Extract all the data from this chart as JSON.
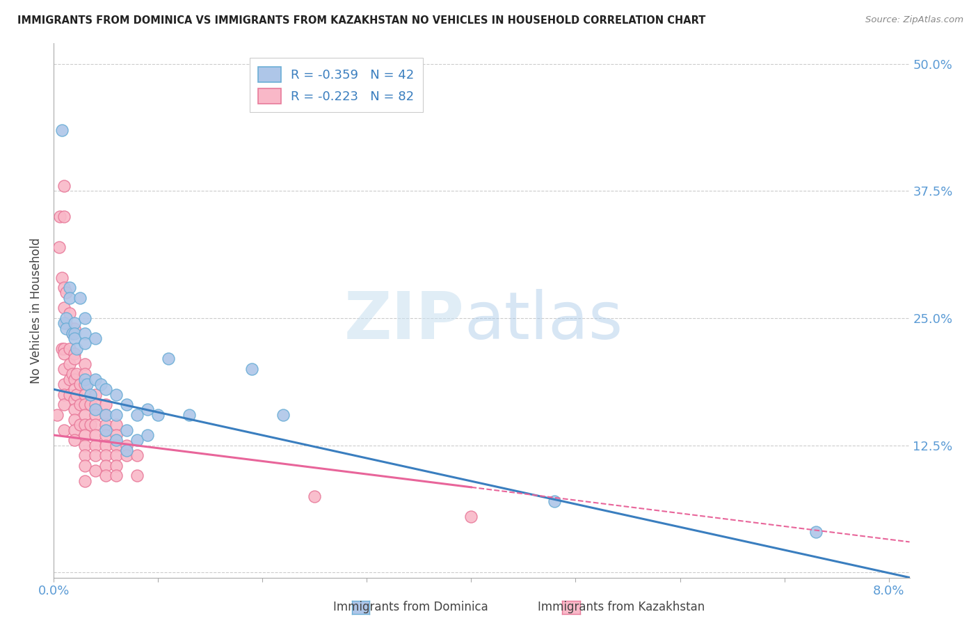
{
  "title": "IMMIGRANTS FROM DOMINICA VS IMMIGRANTS FROM KAZAKHSTAN NO VEHICLES IN HOUSEHOLD CORRELATION CHART",
  "source": "Source: ZipAtlas.com",
  "ylabel": "No Vehicles in Household",
  "yticks": [
    0.0,
    0.125,
    0.25,
    0.375,
    0.5
  ],
  "ytick_labels": [
    "",
    "12.5%",
    "25.0%",
    "37.5%",
    "50.0%"
  ],
  "legend_r1": "R = -0.359   N = 42",
  "legend_r2": "R = -0.223   N = 82",
  "color_dominica": "#aec6e8",
  "color_dominica_edge": "#6baed6",
  "color_kazakhstan": "#f9b8c8",
  "color_kazakhstan_edge": "#e87a9a",
  "color_dominica_line": "#3a7ebf",
  "color_kazakhstan_line": "#e8659a",
  "watermark_zip": "ZIP",
  "watermark_atlas": "atlas",
  "dominica_x": [
    0.0008,
    0.001,
    0.0012,
    0.0012,
    0.0015,
    0.0015,
    0.0018,
    0.002,
    0.002,
    0.002,
    0.0022,
    0.0025,
    0.003,
    0.003,
    0.003,
    0.003,
    0.0032,
    0.0035,
    0.004,
    0.004,
    0.004,
    0.0045,
    0.005,
    0.005,
    0.005,
    0.006,
    0.006,
    0.006,
    0.007,
    0.007,
    0.007,
    0.008,
    0.008,
    0.009,
    0.009,
    0.01,
    0.011,
    0.013,
    0.019,
    0.022,
    0.048,
    0.073
  ],
  "dominica_y": [
    0.435,
    0.245,
    0.25,
    0.24,
    0.28,
    0.27,
    0.235,
    0.245,
    0.235,
    0.23,
    0.22,
    0.27,
    0.25,
    0.235,
    0.225,
    0.19,
    0.185,
    0.175,
    0.23,
    0.19,
    0.16,
    0.185,
    0.18,
    0.155,
    0.14,
    0.175,
    0.155,
    0.13,
    0.165,
    0.14,
    0.12,
    0.155,
    0.13,
    0.16,
    0.135,
    0.155,
    0.21,
    0.155,
    0.2,
    0.155,
    0.07,
    0.04
  ],
  "kazakhstan_x": [
    0.0003,
    0.0005,
    0.0006,
    0.0008,
    0.0008,
    0.001,
    0.001,
    0.001,
    0.001,
    0.001,
    0.001,
    0.001,
    0.001,
    0.001,
    0.001,
    0.001,
    0.0012,
    0.0012,
    0.0015,
    0.0015,
    0.0015,
    0.0015,
    0.0015,
    0.0018,
    0.0018,
    0.002,
    0.002,
    0.002,
    0.002,
    0.002,
    0.002,
    0.002,
    0.002,
    0.002,
    0.002,
    0.0022,
    0.0022,
    0.0025,
    0.0025,
    0.0025,
    0.003,
    0.003,
    0.003,
    0.003,
    0.003,
    0.003,
    0.003,
    0.003,
    0.003,
    0.003,
    0.003,
    0.003,
    0.0035,
    0.0035,
    0.004,
    0.004,
    0.004,
    0.004,
    0.004,
    0.004,
    0.004,
    0.004,
    0.005,
    0.005,
    0.005,
    0.005,
    0.005,
    0.005,
    0.005,
    0.005,
    0.006,
    0.006,
    0.006,
    0.006,
    0.006,
    0.006,
    0.007,
    0.007,
    0.008,
    0.008,
    0.025,
    0.04
  ],
  "kazakhstan_y": [
    0.155,
    0.32,
    0.35,
    0.29,
    0.22,
    0.38,
    0.35,
    0.28,
    0.26,
    0.22,
    0.215,
    0.2,
    0.185,
    0.175,
    0.165,
    0.14,
    0.275,
    0.245,
    0.255,
    0.22,
    0.205,
    0.19,
    0.175,
    0.235,
    0.195,
    0.24,
    0.215,
    0.21,
    0.19,
    0.18,
    0.17,
    0.16,
    0.15,
    0.14,
    0.13,
    0.195,
    0.175,
    0.185,
    0.165,
    0.145,
    0.205,
    0.195,
    0.185,
    0.175,
    0.165,
    0.155,
    0.145,
    0.135,
    0.125,
    0.115,
    0.105,
    0.09,
    0.165,
    0.145,
    0.175,
    0.165,
    0.155,
    0.145,
    0.135,
    0.125,
    0.115,
    0.1,
    0.165,
    0.155,
    0.145,
    0.135,
    0.125,
    0.115,
    0.105,
    0.095,
    0.145,
    0.135,
    0.125,
    0.115,
    0.105,
    0.095,
    0.125,
    0.115,
    0.115,
    0.095,
    0.075,
    0.055
  ],
  "xlim": [
    0.0,
    0.082
  ],
  "ylim": [
    -0.005,
    0.52
  ],
  "blue_line_x0": 0.0,
  "blue_line_y0": 0.18,
  "blue_line_x1": 0.082,
  "blue_line_y1": -0.005,
  "pink_line_x0": 0.0,
  "pink_line_y0": 0.135,
  "pink_line_x1": 0.082,
  "pink_line_y1": 0.03
}
